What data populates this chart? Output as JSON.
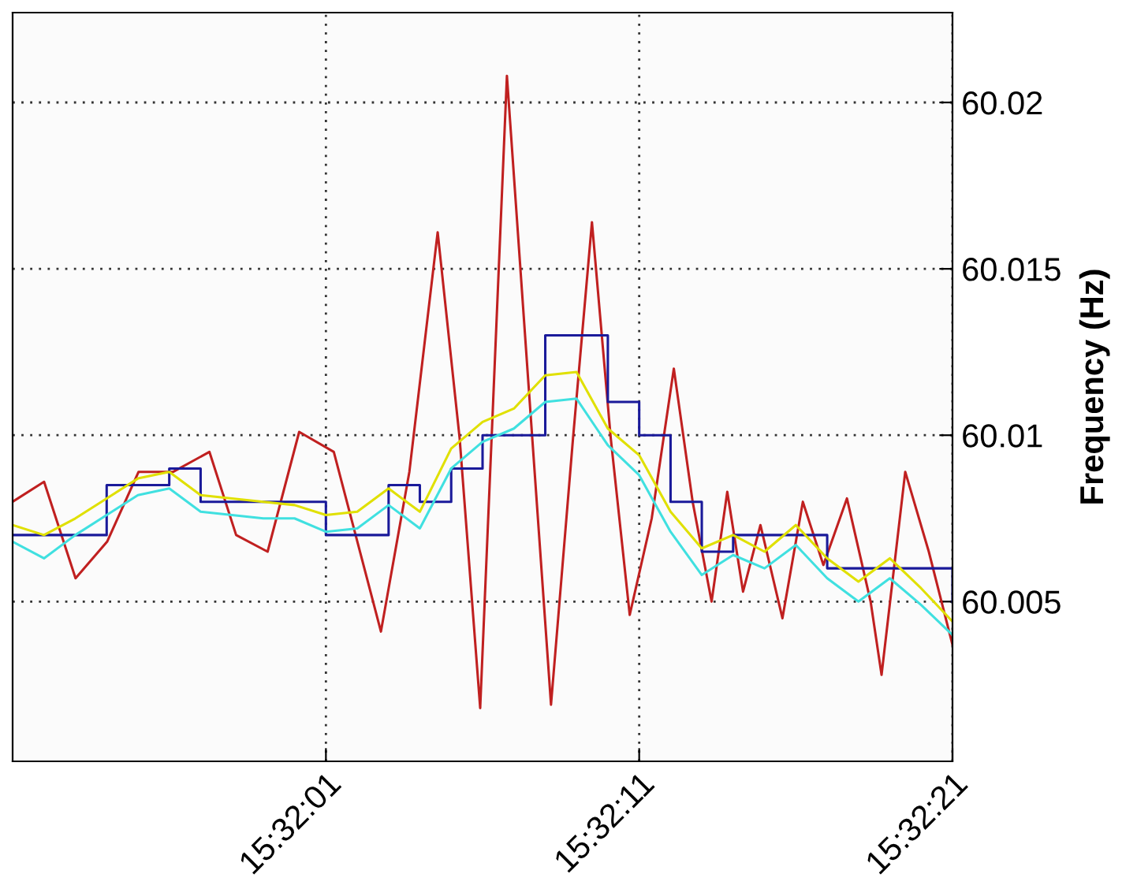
{
  "chart_data": {
    "type": "line",
    "ylabel": "Frequency (Hz)",
    "x": [
      15.530833,
      15.531111,
      15.531389,
      15.531667,
      15.531944,
      15.532222,
      15.5325,
      15.532778,
      15.533056,
      15.533333,
      15.533611,
      15.533889,
      15.534167,
      15.534444,
      15.534722,
      15.535,
      15.535278,
      15.535556,
      15.535833,
      15.536111,
      15.536389,
      15.536667,
      15.536944,
      15.537222,
      15.5375,
      15.537778,
      15.538056,
      15.538333,
      15.538611,
      15.538889,
      15.539167
    ],
    "series": [
      {
        "color": "#c02020",
        "x": [
          15.530833,
          15.531112,
          15.531391,
          15.531671,
          15.53195,
          15.532257,
          15.532578,
          15.532815,
          15.533094,
          15.533374,
          15.533681,
          15.534099,
          15.534351,
          15.534602,
          15.534797,
          15.534979,
          15.535216,
          15.535412,
          15.535607,
          15.535802,
          15.53597,
          15.536137,
          15.536305,
          15.5365,
          15.536696,
          15.536863,
          15.537031,
          15.53717,
          15.53731,
          15.537464,
          15.537659,
          15.53784,
          15.538022,
          15.538231,
          15.538441,
          15.538538,
          15.538748,
          15.538957,
          15.539167
        ],
        "values": [
          60.008,
          60.0086,
          60.0057,
          60.0068,
          60.0089,
          60.0089,
          60.0095,
          60.007,
          60.0065,
          60.0101,
          60.0095,
          60.0041,
          60.0089,
          60.0161,
          60.0099,
          60.0018,
          60.0208,
          60.0113,
          60.0019,
          60.0099,
          60.0164,
          60.0099,
          60.0046,
          60.0075,
          60.012,
          60.008,
          60.005,
          60.0083,
          60.0053,
          60.0073,
          60.0045,
          60.008,
          60.0061,
          60.0081,
          60.005,
          60.0028,
          60.0089,
          60.0065,
          60.0037
        ]
      },
      {
        "type": "step",
        "color": "#1a1a9a",
        "values": [
          60.007,
          60.007,
          60.007,
          60.0085,
          60.0085,
          60.009,
          60.008,
          60.008,
          60.008,
          60.008,
          60.007,
          60.007,
          60.0085,
          60.008,
          60.009,
          60.01,
          60.01,
          60.013,
          60.013,
          60.011,
          60.01,
          60.008,
          60.0065,
          60.007,
          60.007,
          60.007,
          60.006,
          60.006,
          60.006,
          60.006,
          60.005
        ]
      },
      {
        "color": "#40e0e0",
        "values": [
          60.0068,
          60.0063,
          60.007,
          60.0076,
          60.0082,
          60.0084,
          60.0077,
          60.0076,
          60.0075,
          60.0075,
          60.0071,
          60.0072,
          60.0079,
          60.0072,
          60.009,
          60.0098,
          60.0102,
          60.011,
          60.0111,
          60.0097,
          60.0088,
          60.0071,
          60.0058,
          60.0064,
          60.006,
          60.0067,
          60.0057,
          60.005,
          60.0057,
          60.0049,
          60.004
        ]
      },
      {
        "color": "#e0e000",
        "values": [
          60.0073,
          60.007,
          60.0075,
          60.0081,
          60.0087,
          60.0089,
          60.0082,
          60.0081,
          60.008,
          60.0079,
          60.0076,
          60.0077,
          60.0084,
          60.0077,
          60.0096,
          60.0104,
          60.0108,
          60.0118,
          60.0119,
          60.0102,
          60.0094,
          60.0077,
          60.0066,
          60.007,
          60.0065,
          60.0073,
          60.0063,
          60.0056,
          60.0063,
          60.0054,
          60.0044
        ]
      }
    ],
    "xlim": [
      15.530833,
      15.539167
    ],
    "xticks": [
      {
        "value": 15.533611,
        "label": "15:32:01"
      },
      {
        "value": 15.536389,
        "label": "15:32:11"
      },
      {
        "value": 15.539167,
        "label": "15:32:21"
      }
    ],
    "ylim": [
      60.0002,
      60.0227
    ],
    "yticks": [
      60.005,
      60.01,
      60.015,
      60.02
    ],
    "grid": true,
    "marker": "none",
    "line_style": "solid"
  }
}
